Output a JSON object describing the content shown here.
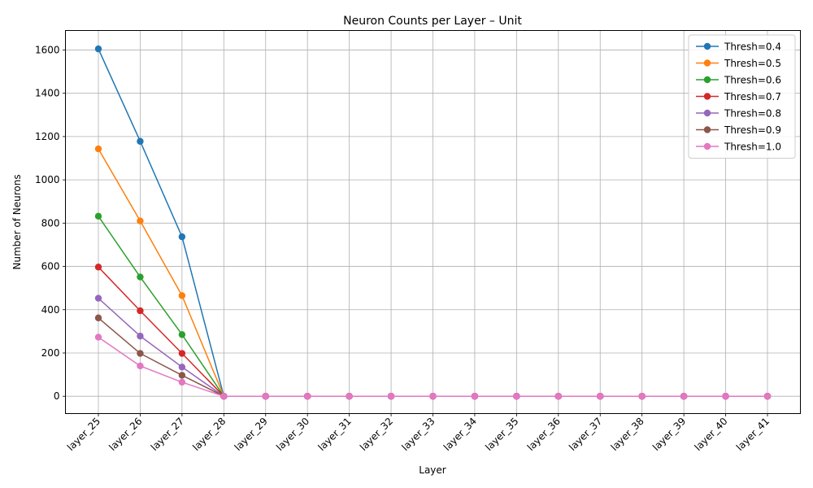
{
  "chart_data": {
    "type": "line",
    "title": "Neuron Counts per Layer – Unit",
    "xlabel": "Layer",
    "ylabel": "Number of Neurons",
    "categories": [
      "layer_25",
      "layer_26",
      "layer_27",
      "layer_28",
      "layer_29",
      "layer_30",
      "layer_31",
      "layer_32",
      "layer_33",
      "layer_34",
      "layer_35",
      "layer_36",
      "layer_37",
      "layer_38",
      "layer_39",
      "layer_40",
      "layer_41"
    ],
    "ylim": [
      -80,
      1690
    ],
    "yticks": [
      0,
      200,
      400,
      600,
      800,
      1000,
      1200,
      1400,
      1600
    ],
    "grid": true,
    "legend_position": "top-right",
    "series": [
      {
        "name": "Thresh=0.4",
        "color": "#1f77b4",
        "values": [
          1605,
          1178,
          737,
          0,
          0,
          0,
          0,
          0,
          0,
          0,
          0,
          0,
          0,
          0,
          0,
          0,
          0
        ]
      },
      {
        "name": "Thresh=0.5",
        "color": "#ff7f0e",
        "values": [
          1143,
          810,
          465,
          0,
          0,
          0,
          0,
          0,
          0,
          0,
          0,
          0,
          0,
          0,
          0,
          0,
          0
        ]
      },
      {
        "name": "Thresh=0.6",
        "color": "#2ca02c",
        "values": [
          832,
          551,
          285,
          0,
          0,
          0,
          0,
          0,
          0,
          0,
          0,
          0,
          0,
          0,
          0,
          0,
          0
        ]
      },
      {
        "name": "Thresh=0.7",
        "color": "#d62728",
        "values": [
          597,
          395,
          198,
          0,
          0,
          0,
          0,
          0,
          0,
          0,
          0,
          0,
          0,
          0,
          0,
          0,
          0
        ]
      },
      {
        "name": "Thresh=0.8",
        "color": "#9467bd",
        "values": [
          453,
          278,
          135,
          0,
          0,
          0,
          0,
          0,
          0,
          0,
          0,
          0,
          0,
          0,
          0,
          0,
          0
        ]
      },
      {
        "name": "Thresh=0.9",
        "color": "#8c564b",
        "values": [
          362,
          198,
          97,
          0,
          0,
          0,
          0,
          0,
          0,
          0,
          0,
          0,
          0,
          0,
          0,
          0,
          0
        ]
      },
      {
        "name": "Thresh=1.0",
        "color": "#e377c2",
        "values": [
          273,
          140,
          65,
          0,
          0,
          0,
          0,
          0,
          0,
          0,
          0,
          0,
          0,
          0,
          0,
          0,
          0
        ]
      }
    ]
  }
}
